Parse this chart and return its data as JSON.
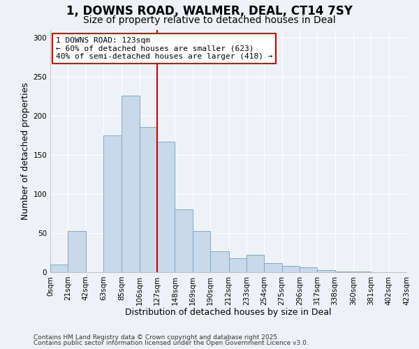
{
  "title": "1, DOWNS ROAD, WALMER, DEAL, CT14 7SY",
  "subtitle": "Size of property relative to detached houses in Deal",
  "xlabel": "Distribution of detached houses by size in Deal",
  "ylabel": "Number of detached properties",
  "bin_edges": [
    0,
    21,
    42,
    63,
    85,
    106,
    127,
    148,
    169,
    190,
    212,
    233,
    254,
    275,
    296,
    317,
    338,
    360,
    381,
    402,
    423
  ],
  "bin_counts": [
    10,
    53,
    0,
    175,
    226,
    186,
    167,
    80,
    53,
    27,
    18,
    22,
    12,
    8,
    6,
    3,
    1,
    1,
    0,
    0
  ],
  "bar_color": "#c9d9ea",
  "bar_edge_color": "#7aaac8",
  "vline_x": 127,
  "vline_color": "#cc0000",
  "annotation_text": "1 DOWNS ROAD: 123sqm\n← 60% of detached houses are smaller (623)\n40% of semi-detached houses are larger (418) →",
  "annotation_box_color": "#ffffff",
  "annotation_box_edge_color": "#cc0000",
  "tick_labels": [
    "0sqm",
    "21sqm",
    "42sqm",
    "63sqm",
    "85sqm",
    "106sqm",
    "127sqm",
    "148sqm",
    "169sqm",
    "190sqm",
    "212sqm",
    "233sqm",
    "254sqm",
    "275sqm",
    "296sqm",
    "317sqm",
    "338sqm",
    "360sqm",
    "381sqm",
    "402sqm",
    "423sqm"
  ],
  "ylim": [
    0,
    310
  ],
  "yticks": [
    0,
    50,
    100,
    150,
    200,
    250,
    300
  ],
  "footer1": "Contains HM Land Registry data © Crown copyright and database right 2025.",
  "footer2": "Contains public sector information licensed under the Open Government Licence v3.0.",
  "bg_color": "#eef2f7",
  "grid_color": "#ffffff",
  "title_fontsize": 12,
  "subtitle_fontsize": 10,
  "axis_label_fontsize": 9,
  "tick_fontsize": 7.5,
  "footer_fontsize": 6.5
}
